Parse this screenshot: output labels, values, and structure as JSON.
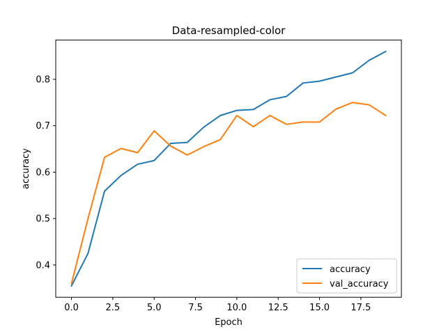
{
  "chart_data": {
    "type": "line",
    "title": "Data-resampled-color",
    "xlabel": "Epoch",
    "ylabel": "accuracy",
    "xlim": [
      -0.95,
      19.95
    ],
    "ylim": [
      0.3305,
      0.8845
    ],
    "xticks": [
      0.0,
      2.5,
      5.0,
      7.5,
      10.0,
      12.5,
      15.0,
      17.5
    ],
    "xtick_labels": [
      "0.0",
      "2.5",
      "5.0",
      "7.5",
      "10.0",
      "12.5",
      "15.0",
      "17.5"
    ],
    "yticks": [
      0.4,
      0.5,
      0.6,
      0.7,
      0.8
    ],
    "ytick_labels": [
      "0.4",
      "0.5",
      "0.6",
      "0.7",
      "0.8"
    ],
    "grid": false,
    "legend_position": "lower-right",
    "x": [
      0,
      1,
      2,
      3,
      4,
      5,
      6,
      7,
      8,
      9,
      10,
      11,
      12,
      13,
      14,
      15,
      16,
      17,
      18,
      19
    ],
    "series": [
      {
        "name": "accuracy",
        "color": "#1f77b4",
        "values": [
          0.355,
          0.425,
          0.559,
          0.593,
          0.617,
          0.625,
          0.662,
          0.664,
          0.697,
          0.722,
          0.733,
          0.735,
          0.756,
          0.763,
          0.792,
          0.796,
          0.805,
          0.814,
          0.841,
          0.86
        ]
      },
      {
        "name": "val_accuracy",
        "color": "#ff7f0e",
        "values": [
          0.36,
          0.5,
          0.632,
          0.651,
          0.642,
          0.689,
          0.656,
          0.637,
          0.655,
          0.67,
          0.722,
          0.698,
          0.722,
          0.703,
          0.708,
          0.708,
          0.736,
          0.75,
          0.745,
          0.722
        ]
      }
    ]
  }
}
